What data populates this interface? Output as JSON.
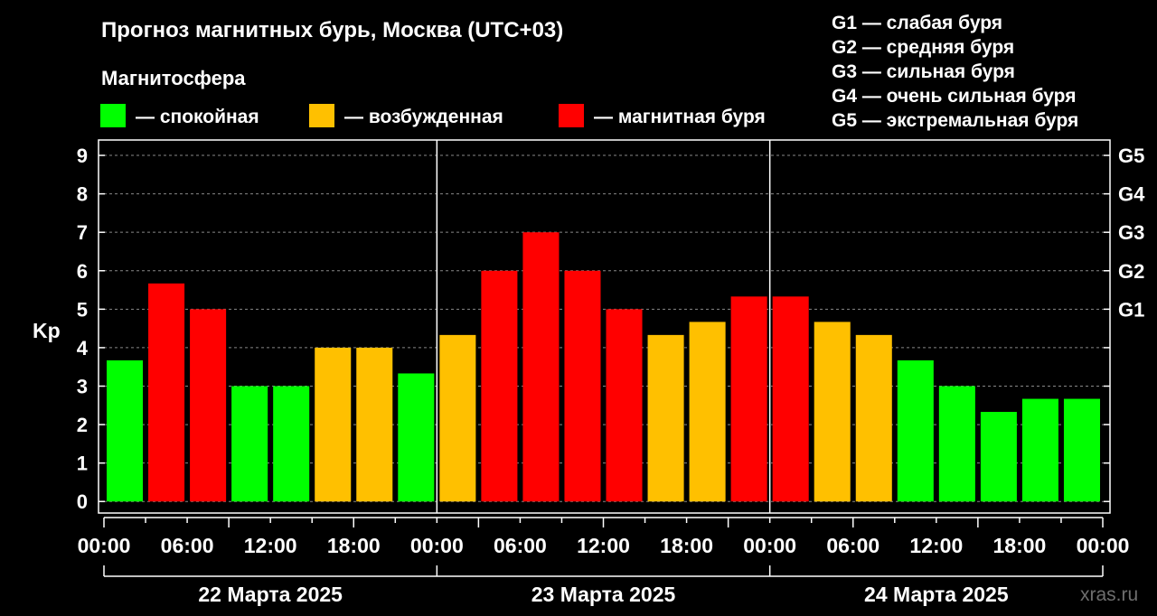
{
  "title": "Прогноз магнитных бурь, Москва (UTC+03)",
  "legend_title": "Магнитосфера",
  "legend": [
    {
      "label": "— спокойная",
      "color": "#00ff00"
    },
    {
      "label": "— возбужденная",
      "color": "#ffc000"
    },
    {
      "label": "— магнитная буря",
      "color": "#ff0000"
    }
  ],
  "g_legend": [
    "G1 — слабая буря",
    "G2 — средняя буря",
    "G3 — сильная буря",
    "G4 — очень сильная буря",
    "G5 — экстремальная буря"
  ],
  "watermark": "xras.ru",
  "chart_data": {
    "type": "bar",
    "ylabel": "Kp",
    "ylim": [
      -0.3,
      9.4
    ],
    "yticks": [
      0,
      1,
      2,
      3,
      4,
      5,
      6,
      7,
      8,
      9
    ],
    "right_axis_labels": [
      {
        "value": 5,
        "label": "G1"
      },
      {
        "value": 6,
        "label": "G2"
      },
      {
        "value": 7,
        "label": "G3"
      },
      {
        "value": 8,
        "label": "G4"
      },
      {
        "value": 9,
        "label": "G5"
      }
    ],
    "x_tick_labels": [
      "00:00",
      "06:00",
      "12:00",
      "18:00",
      "00:00",
      "06:00",
      "12:00",
      "18:00",
      "00:00",
      "06:00",
      "12:00",
      "18:00",
      "00:00"
    ],
    "days": [
      "22 Марта 2025",
      "23 Марта 2025",
      "24 Марта 2025"
    ],
    "grid": true,
    "bars": [
      {
        "value": 3.67,
        "level": "calm"
      },
      {
        "value": 5.67,
        "level": "storm"
      },
      {
        "value": 5.0,
        "level": "storm"
      },
      {
        "value": 3.0,
        "level": "calm"
      },
      {
        "value": 3.0,
        "level": "calm"
      },
      {
        "value": 4.0,
        "level": "active"
      },
      {
        "value": 4.0,
        "level": "active"
      },
      {
        "value": 3.33,
        "level": "calm"
      },
      {
        "value": 4.33,
        "level": "active"
      },
      {
        "value": 6.0,
        "level": "storm"
      },
      {
        "value": 7.0,
        "level": "storm"
      },
      {
        "value": 6.0,
        "level": "storm"
      },
      {
        "value": 5.0,
        "level": "storm"
      },
      {
        "value": 4.33,
        "level": "active"
      },
      {
        "value": 4.67,
        "level": "active"
      },
      {
        "value": 5.33,
        "level": "storm"
      },
      {
        "value": 5.33,
        "level": "storm"
      },
      {
        "value": 4.67,
        "level": "active"
      },
      {
        "value": 4.33,
        "level": "active"
      },
      {
        "value": 3.67,
        "level": "calm"
      },
      {
        "value": 3.0,
        "level": "calm"
      },
      {
        "value": 2.33,
        "level": "calm"
      },
      {
        "value": 2.67,
        "level": "calm"
      },
      {
        "value": 2.67,
        "level": "calm"
      }
    ],
    "level_colors": {
      "calm": "#00ff00",
      "active": "#ffc000",
      "storm": "#ff0000"
    }
  }
}
